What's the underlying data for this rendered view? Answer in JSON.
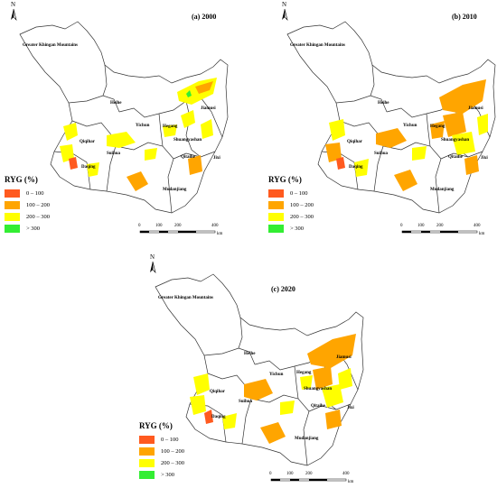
{
  "panels": [
    {
      "title": "(a) 2000"
    },
    {
      "title": "(b) 2010"
    },
    {
      "title": "(c) 2020"
    }
  ],
  "north_label": "N",
  "cities": {
    "greater_khingan": "Greater Khingan Mountains",
    "heihe": "Heihe",
    "yichun": "Yichun",
    "hegang": "Hegang",
    "jiamusi": "Jiamusi",
    "qiqihar": "Qiqihar",
    "suihua": "Suihua",
    "shuangyashan": "Shuangyashan",
    "qitaihe": "Qitaihe",
    "jixi": "Jixi",
    "daqing": "Daqing",
    "mudanjiang": "Mudanjiang"
  },
  "legend": {
    "title": "RYG (%)",
    "items": [
      {
        "label": "0 – 100",
        "color": "#ff5a1f"
      },
      {
        "label": "100 – 200",
        "color": "#ffa500"
      },
      {
        "label": "200 – 300",
        "color": "#ffff00"
      },
      {
        "label": "> 300",
        "color": "#33ee33"
      }
    ]
  },
  "scale": {
    "ticks": [
      "0",
      "100",
      "200",
      "400"
    ],
    "unit": "km"
  }
}
